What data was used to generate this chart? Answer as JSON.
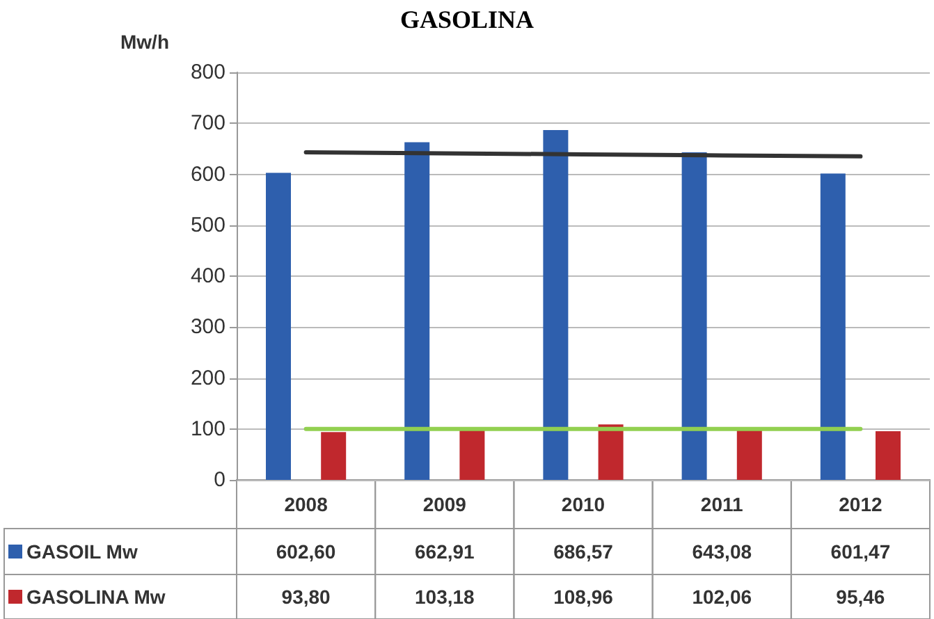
{
  "chart_data": {
    "type": "bar",
    "title": "GASOLINA",
    "ylabel": "Mw/h",
    "categories": [
      "2008",
      "2009",
      "2010",
      "2011",
      "2012"
    ],
    "series": [
      {
        "name": "GASOIL Mw",
        "color": "#2e5fad",
        "values": [
          602.6,
          662.91,
          686.57,
          643.08,
          601.47
        ],
        "value_labels": [
          "602,60",
          "662,91",
          "686,57",
          "643,08",
          "601,47"
        ]
      },
      {
        "name": "GASOLINA Mw",
        "color": "#c0282d",
        "values": [
          93.8,
          103.18,
          108.96,
          102.06,
          95.46
        ],
        "value_labels": [
          "93,80",
          "103,18",
          "108,96",
          "102,06",
          "95,46"
        ]
      },
      {
        "type": "line",
        "color": "#333333",
        "values": [
          643,
          641,
          639,
          637,
          635
        ]
      },
      {
        "type": "line",
        "color": "#92d050",
        "values": [
          100,
          100,
          100,
          100,
          100
        ]
      }
    ],
    "ylim": [
      0,
      800
    ],
    "yticks": [
      0,
      100,
      200,
      300,
      400,
      500,
      600,
      700,
      800
    ],
    "grid": "y",
    "legend": "bottom"
  }
}
